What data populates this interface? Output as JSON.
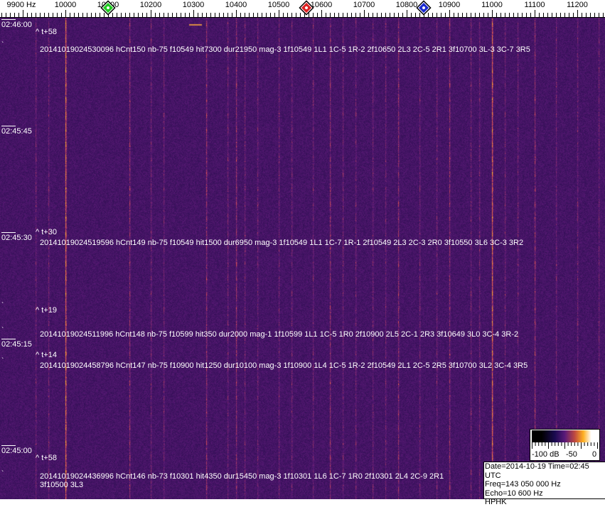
{
  "frequency_axis": {
    "labels": [
      "9900 Hz",
      "10000",
      "10100",
      "10200",
      "10300",
      "10400",
      "10500",
      "10600",
      "10700",
      "10800",
      "10900",
      "11000",
      "11100",
      "11200"
    ],
    "label_freqs_hz": [
      9900,
      10000,
      10100,
      10200,
      10300,
      10400,
      10500,
      10600,
      10700,
      10800,
      10900,
      11000,
      11100,
      11200
    ]
  },
  "markers": [
    {
      "name": "green-marker",
      "color": "#22cc22",
      "freq_hz": 10100
    },
    {
      "name": "red-marker",
      "color": "#dd2222",
      "freq_hz": 10565
    },
    {
      "name": "blue-marker",
      "color": "#1a2ad0",
      "freq_hz": 10840
    }
  ],
  "time_labels": [
    "02:46:00",
    "02:45:45",
    "02:45:30",
    "02:45:15",
    "02:45:00"
  ],
  "offset_labels": [
    "^ t+58",
    "^ t+30",
    "^ t+19",
    "^ t+14",
    "^ t+58"
  ],
  "detections": [
    "20141019024530096 hCnt150 nb-75 f10549 hit7300 dur21950 mag-3 1f10549 1L1 1C-5 1R-2 2f10650 2L3 2C-5 2R1 3f10700 3L-3 3C-7 3R5",
    "20141019024519596 hCnt149 nb-75 f10549 hit1500 dur6950 mag-3 1f10549 1L1 1C-7 1R-1 2f10549 2L3 2C-3 2R0 3f10550 3L6 3C-3 3R2",
    "20141019024511996 hCnt148 nb-75 f10599 hit350 dur2000 mag-1 1f10599 1L1 1C-5 1R0 2f10900 2L5 2C-1 2R3 3f10649 3L0 3C-4 3R-2",
    "20141019024458796 hCnt147 nb-75 f10900 hit1250 dur10100 mag-3 1f10900 1L4 1C-5 1R-2 2f10549 2L1 2C-5 2R5 3f10700 3L2 3C-4 3R5",
    "20141019024436996 hCnt146 nb-73 f10301 hit4350 dur15450 mag-3 1f10301 1L6 1C-7 1R0 2f10301 2L4 2C-9 2R1 3f10500 3L3"
  ],
  "colorbar": {
    "labels": [
      "-100 dB",
      "-50",
      "0"
    ]
  },
  "info": {
    "date_time": "Date=2014-10-19 Time=02:45 UTC",
    "freq": "Freq=143 050 000 Hz",
    "echo": "Echo=10 600 Hz",
    "station": "HPHK"
  }
}
